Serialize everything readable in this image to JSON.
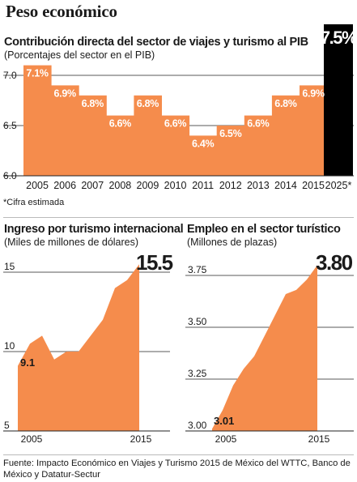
{
  "title": "Peso económico",
  "colors": {
    "orange": "#f58c4c",
    "black": "#000000",
    "grid": "#222222"
  },
  "source": "Fuente: Impacto Económico en Viajes y Turismo 2015 de México del  WTTC, Banco de México y Datatur-Sectur",
  "chart_data": [
    {
      "type": "bar",
      "title": "Contribución directa del sector de viajes y turismo al PIB",
      "subtitle": "(Porcentajes del sector en el PIB)",
      "note": "*Cifra estimada",
      "categories": [
        "2005",
        "2006",
        "2007",
        "2008",
        "2009",
        "2010",
        "2011",
        "2012",
        "2013",
        "2014",
        "2015",
        "2025*"
      ],
      "values": [
        7.1,
        6.9,
        6.8,
        6.6,
        6.8,
        6.6,
        6.4,
        6.5,
        6.6,
        6.8,
        6.9,
        7.5
      ],
      "value_labels": [
        "7.1%",
        "6.9%",
        "6.8%",
        "6.6%",
        "6.8%",
        "6.6%",
        "6.4%",
        "6.5%",
        "6.6%",
        "6.8%",
        "6.9%",
        "7.5%"
      ],
      "highlight_index": 11,
      "yticks": [
        "6.0",
        "6.5",
        "7.0"
      ],
      "ylim": [
        6.0,
        7.5
      ]
    },
    {
      "type": "area",
      "title": "Ingreso por turismo internacional",
      "subtitle": "(Miles de millones de dólares)",
      "x": [
        2005,
        2006,
        2007,
        2008,
        2009,
        2010,
        2011,
        2012,
        2013,
        2014,
        2015
      ],
      "values": [
        9.1,
        10.5,
        11.0,
        9.5,
        10.0,
        10.0,
        11.0,
        12.0,
        14.0,
        14.5,
        15.5
      ],
      "start_label": "9.1",
      "end_label": "15.5",
      "yticks": [
        "5",
        "10",
        "15"
      ],
      "xticks": [
        "2005",
        "2015"
      ],
      "ylim": [
        5,
        16
      ]
    },
    {
      "type": "area",
      "title": "Empleo en el sector turístico",
      "subtitle": "(Millones de plazas)",
      "x": [
        2005,
        2006,
        2007,
        2008,
        2009,
        2010,
        2011,
        2012,
        2013,
        2014,
        2015
      ],
      "values": [
        3.01,
        3.1,
        3.22,
        3.3,
        3.36,
        3.46,
        3.56,
        3.66,
        3.68,
        3.73,
        3.8
      ],
      "start_label": "3.01",
      "end_label": "3.80",
      "yticks": [
        "3.00",
        "3.25",
        "3.50",
        "3.75"
      ],
      "xticks": [
        "2005",
        "2015"
      ],
      "ylim": [
        3.0,
        3.85
      ]
    }
  ]
}
